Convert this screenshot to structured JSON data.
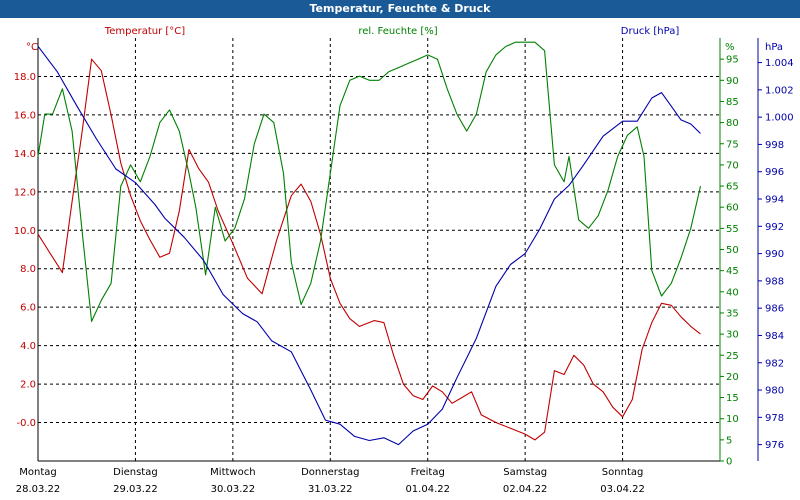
{
  "header": {
    "title": "Temperatur, Feuchte & Druck"
  },
  "chart_data": {
    "type": "line",
    "title": "Temperatur, Feuchte & Druck",
    "x_categories": [
      {
        "day": "Montag",
        "date": "28.03.22"
      },
      {
        "day": "Dienstag",
        "date": "29.03.22"
      },
      {
        "day": "Mittwoch",
        "date": "30.03.22"
      },
      {
        "day": "Donnerstag",
        "date": "31.03.22"
      },
      {
        "day": "Freitag",
        "date": "01.04.22"
      },
      {
        "day": "Samstag",
        "date": "02.04.22"
      },
      {
        "day": "Sonntag",
        "date": "03.04.22"
      }
    ],
    "grid": true,
    "axes": {
      "temp": {
        "label": "Temperatur [°C]",
        "unit": "°C",
        "side": "left",
        "range": [
          -2,
          20
        ],
        "ticks": [
          "-0.0",
          "2.0",
          "4.0",
          "6.0",
          "8.0",
          "10.0",
          "12.0",
          "14.0",
          "16.0",
          "18.0"
        ]
      },
      "hum": {
        "label": "rel. Feuchte [%]",
        "unit": "%",
        "side": "right",
        "range": [
          0,
          100
        ],
        "ticks": [
          "0",
          "5",
          "10",
          "15",
          "20",
          "25",
          "30",
          "35",
          "40",
          "45",
          "50",
          "55",
          "60",
          "65",
          "70",
          "75",
          "80",
          "85",
          "90",
          "95"
        ]
      },
      "press": {
        "label": "Druck [hPa]",
        "unit": "hPa",
        "side": "right",
        "range": [
          974.8,
          1005.8
        ],
        "ticks": [
          "976",
          "978",
          "980",
          "982",
          "984",
          "986",
          "988",
          "990",
          "992",
          "994",
          "996",
          "998",
          "1.000",
          "1.002",
          "1.004"
        ]
      }
    },
    "colors": {
      "temp": "#c00000",
      "hum": "#008000",
      "press": "#0000aa",
      "title_bar": "#1a5a96"
    },
    "series": [
      {
        "name": "Temperatur [°C]",
        "axis": "temp",
        "points": [
          [
            0,
            9.8
          ],
          [
            0.1,
            9.0
          ],
          [
            0.25,
            7.8
          ],
          [
            0.35,
            11.5
          ],
          [
            0.45,
            15.0
          ],
          [
            0.55,
            18.9
          ],
          [
            0.65,
            18.3
          ],
          [
            0.75,
            16.0
          ],
          [
            0.85,
            13.5
          ],
          [
            0.95,
            11.8
          ],
          [
            1.05,
            10.5
          ],
          [
            1.15,
            9.5
          ],
          [
            1.25,
            8.6
          ],
          [
            1.35,
            8.8
          ],
          [
            1.45,
            11.0
          ],
          [
            1.55,
            14.2
          ],
          [
            1.65,
            13.2
          ],
          [
            1.75,
            12.5
          ],
          [
            1.85,
            11.0
          ],
          [
            2.0,
            9.3
          ],
          [
            2.15,
            7.5
          ],
          [
            2.3,
            6.7
          ],
          [
            2.45,
            9.5
          ],
          [
            2.6,
            11.8
          ],
          [
            2.7,
            12.4
          ],
          [
            2.8,
            11.5
          ],
          [
            2.9,
            9.8
          ],
          [
            3.0,
            7.5
          ],
          [
            3.1,
            6.2
          ],
          [
            3.2,
            5.4
          ],
          [
            3.3,
            5.0
          ],
          [
            3.45,
            5.3
          ],
          [
            3.55,
            5.2
          ],
          [
            3.65,
            3.5
          ],
          [
            3.75,
            2.0
          ],
          [
            3.85,
            1.4
          ],
          [
            3.95,
            1.2
          ],
          [
            4.05,
            1.9
          ],
          [
            4.15,
            1.6
          ],
          [
            4.25,
            1.0
          ],
          [
            4.35,
            1.3
          ],
          [
            4.45,
            1.6
          ],
          [
            4.55,
            0.4
          ],
          [
            4.7,
            0.0
          ],
          [
            4.85,
            -0.3
          ],
          [
            5.0,
            -0.6
          ],
          [
            5.1,
            -0.9
          ],
          [
            5.2,
            -0.5
          ],
          [
            5.3,
            2.7
          ],
          [
            5.4,
            2.5
          ],
          [
            5.5,
            3.5
          ],
          [
            5.6,
            3.0
          ],
          [
            5.7,
            2.0
          ],
          [
            5.8,
            1.6
          ],
          [
            5.9,
            0.8
          ],
          [
            6.0,
            0.3
          ],
          [
            6.1,
            1.2
          ],
          [
            6.2,
            3.8
          ],
          [
            6.3,
            5.2
          ],
          [
            6.4,
            6.2
          ],
          [
            6.5,
            6.1
          ],
          [
            6.6,
            5.5
          ],
          [
            6.7,
            5.0
          ],
          [
            6.8,
            4.6
          ]
        ]
      },
      {
        "name": "rel. Feuchte [%]",
        "axis": "hum",
        "points": [
          [
            0,
            72
          ],
          [
            0.07,
            82
          ],
          [
            0.15,
            82
          ],
          [
            0.25,
            88
          ],
          [
            0.35,
            78
          ],
          [
            0.45,
            55
          ],
          [
            0.55,
            33
          ],
          [
            0.65,
            38
          ],
          [
            0.75,
            42
          ],
          [
            0.85,
            65
          ],
          [
            0.95,
            70
          ],
          [
            1.05,
            66
          ],
          [
            1.15,
            72
          ],
          [
            1.25,
            80
          ],
          [
            1.35,
            83
          ],
          [
            1.45,
            78
          ],
          [
            1.55,
            68
          ],
          [
            1.62,
            60
          ],
          [
            1.72,
            44
          ],
          [
            1.82,
            60
          ],
          [
            1.92,
            52
          ],
          [
            2.02,
            55
          ],
          [
            2.12,
            62
          ],
          [
            2.22,
            75
          ],
          [
            2.32,
            82
          ],
          [
            2.42,
            80
          ],
          [
            2.52,
            68
          ],
          [
            2.6,
            47
          ],
          [
            2.7,
            37
          ],
          [
            2.8,
            42
          ],
          [
            2.9,
            52
          ],
          [
            3.0,
            68
          ],
          [
            3.1,
            84
          ],
          [
            3.2,
            90
          ],
          [
            3.3,
            91
          ],
          [
            3.4,
            90
          ],
          [
            3.5,
            90
          ],
          [
            3.6,
            92
          ],
          [
            3.7,
            93
          ],
          [
            3.8,
            94
          ],
          [
            3.9,
            95
          ],
          [
            4.0,
            96
          ],
          [
            4.1,
            95
          ],
          [
            4.2,
            88
          ],
          [
            4.3,
            82
          ],
          [
            4.4,
            78
          ],
          [
            4.5,
            82
          ],
          [
            4.6,
            92
          ],
          [
            4.7,
            96
          ],
          [
            4.8,
            98
          ],
          [
            4.9,
            99
          ],
          [
            5.0,
            99
          ],
          [
            5.1,
            99
          ],
          [
            5.2,
            97
          ],
          [
            5.3,
            70
          ],
          [
            5.4,
            66
          ],
          [
            5.45,
            72
          ],
          [
            5.55,
            57
          ],
          [
            5.65,
            55
          ],
          [
            5.75,
            58
          ],
          [
            5.85,
            64
          ],
          [
            5.95,
            72
          ],
          [
            6.05,
            77
          ],
          [
            6.15,
            79
          ],
          [
            6.22,
            72
          ],
          [
            6.3,
            45
          ],
          [
            6.4,
            39
          ],
          [
            6.5,
            42
          ],
          [
            6.6,
            48
          ],
          [
            6.7,
            55
          ],
          [
            6.8,
            65
          ]
        ]
      },
      {
        "name": "Druck [hPa]",
        "axis": "press",
        "points": [
          [
            0,
            1005.2
          ],
          [
            0.2,
            1003.3
          ],
          [
            0.4,
            1000.8
          ],
          [
            0.6,
            998.4
          ],
          [
            0.8,
            996.2
          ],
          [
            1.0,
            995.2
          ],
          [
            1.2,
            993.6
          ],
          [
            1.3,
            992.6
          ],
          [
            1.5,
            991.2
          ],
          [
            1.7,
            989.5
          ],
          [
            1.9,
            987.0
          ],
          [
            2.1,
            985.6
          ],
          [
            2.25,
            985.0
          ],
          [
            2.4,
            983.6
          ],
          [
            2.6,
            982.8
          ],
          [
            2.8,
            980.0
          ],
          [
            2.95,
            977.8
          ],
          [
            3.1,
            977.5
          ],
          [
            3.25,
            976.6
          ],
          [
            3.4,
            976.3
          ],
          [
            3.55,
            976.5
          ],
          [
            3.7,
            976.0
          ],
          [
            3.85,
            977.0
          ],
          [
            4.0,
            977.5
          ],
          [
            4.15,
            978.6
          ],
          [
            4.3,
            980.9
          ],
          [
            4.5,
            983.8
          ],
          [
            4.7,
            987.6
          ],
          [
            4.85,
            989.2
          ],
          [
            5.0,
            990.0
          ],
          [
            5.15,
            991.8
          ],
          [
            5.3,
            994.0
          ],
          [
            5.45,
            995.0
          ],
          [
            5.6,
            996.5
          ],
          [
            5.8,
            998.6
          ],
          [
            6.0,
            999.7
          ],
          [
            6.15,
            999.7
          ],
          [
            6.3,
            1001.4
          ],
          [
            6.4,
            1001.8
          ],
          [
            6.5,
            1000.8
          ],
          [
            6.6,
            999.8
          ],
          [
            6.7,
            999.5
          ],
          [
            6.8,
            998.8
          ]
        ]
      }
    ]
  }
}
